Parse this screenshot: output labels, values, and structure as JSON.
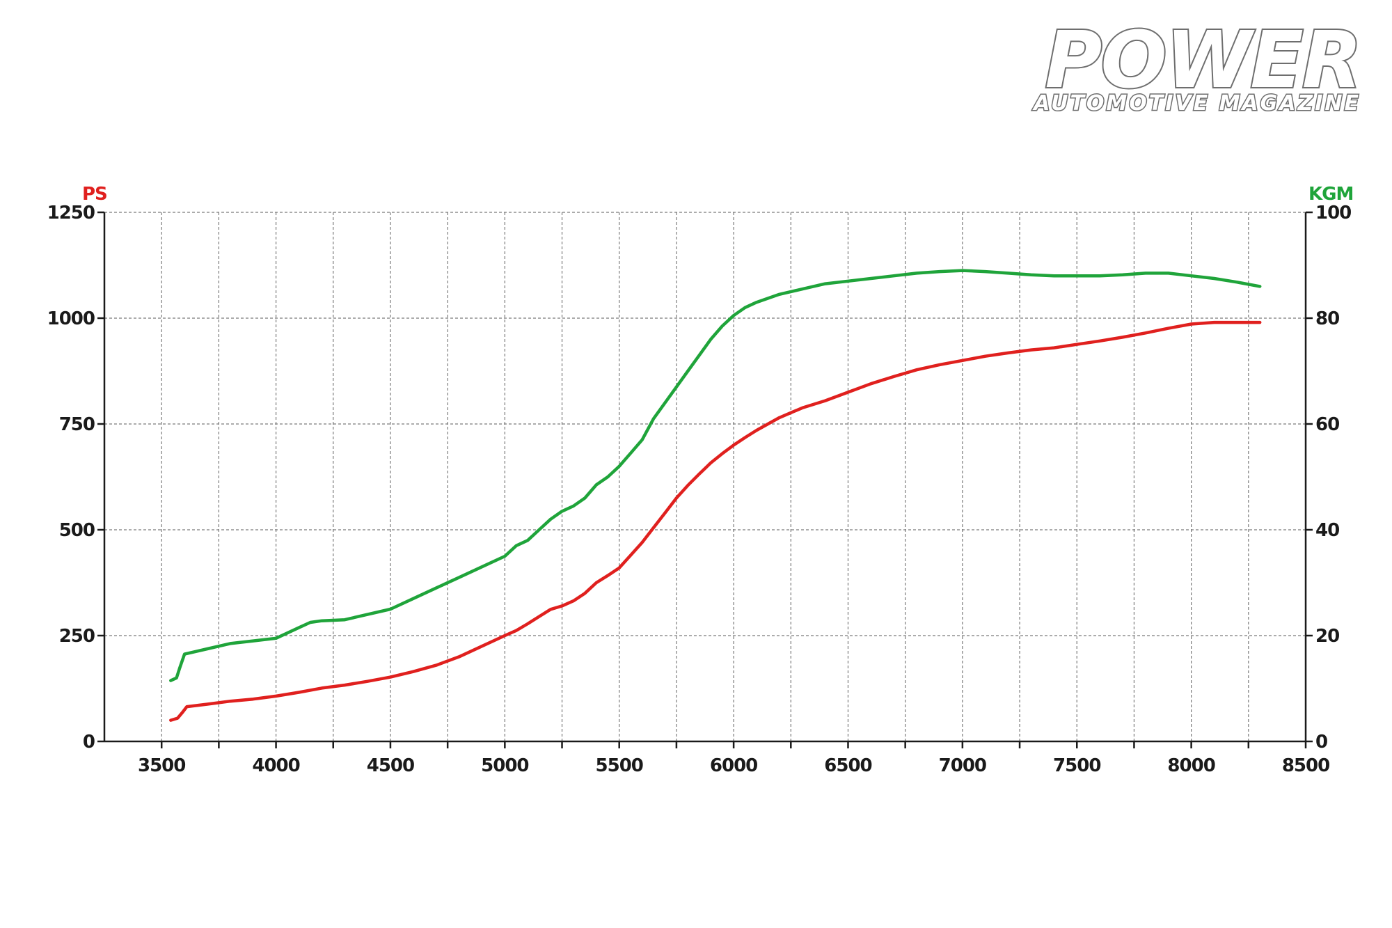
{
  "logo": {
    "name": "POWER",
    "tagline": "AUTOMOTIVE MAGAZINE"
  },
  "colors": {
    "power": "#e0201e",
    "torque": "#1fa43a",
    "axis": "#1a1a1a",
    "grid": "#7a7a7a"
  },
  "chart_data": {
    "type": "line",
    "title": "",
    "xlabel": "",
    "ylabel_left": "PS",
    "ylabel_right": "KGM",
    "xlim": [
      3250,
      8500
    ],
    "ylim_left": [
      0,
      1250
    ],
    "ylim_right": [
      0,
      100
    ],
    "x_ticks": [
      3500,
      4000,
      4500,
      5000,
      5500,
      6000,
      6500,
      7000,
      7500,
      8000,
      8500
    ],
    "y_ticks_left": [
      0,
      250,
      500,
      750,
      1000,
      1250
    ],
    "y_ticks_right": [
      0,
      20,
      40,
      60,
      80,
      100
    ],
    "grid": true,
    "series": [
      {
        "name": "PS",
        "axis": "left",
        "color": "#e0201e",
        "x": [
          3540,
          3570,
          3590,
          3610,
          3700,
          3800,
          3900,
          4000,
          4100,
          4200,
          4300,
          4400,
          4500,
          4600,
          4700,
          4800,
          4900,
          5000,
          5050,
          5100,
          5150,
          5200,
          5250,
          5300,
          5350,
          5400,
          5450,
          5500,
          5550,
          5600,
          5650,
          5700,
          5750,
          5800,
          5850,
          5900,
          5950,
          6000,
          6050,
          6100,
          6150,
          6200,
          6300,
          6400,
          6500,
          6600,
          6700,
          6800,
          6900,
          7000,
          7100,
          7200,
          7300,
          7400,
          7500,
          7600,
          7700,
          7800,
          7900,
          8000,
          8100,
          8200,
          8300
        ],
        "values": [
          50,
          55,
          68,
          82,
          88,
          95,
          100,
          107,
          116,
          126,
          133,
          142,
          152,
          165,
          180,
          200,
          225,
          250,
          262,
          278,
          295,
          312,
          320,
          332,
          350,
          375,
          392,
          410,
          440,
          470,
          505,
          540,
          575,
          605,
          632,
          658,
          680,
          700,
          718,
          735,
          750,
          765,
          788,
          805,
          825,
          845,
          862,
          878,
          890,
          900,
          910,
          918,
          925,
          930,
          938,
          946,
          955,
          965,
          976,
          986,
          990,
          990,
          990
        ]
      },
      {
        "name": "KGM",
        "axis": "right",
        "color": "#1fa43a",
        "x": [
          3540,
          3565,
          3580,
          3600,
          3650,
          3700,
          3750,
          3800,
          3900,
          4000,
          4050,
          4100,
          4150,
          4200,
          4300,
          4400,
          4500,
          4600,
          4700,
          4800,
          4900,
          5000,
          5050,
          5100,
          5150,
          5200,
          5250,
          5300,
          5350,
          5400,
          5450,
          5500,
          5550,
          5600,
          5650,
          5700,
          5750,
          5800,
          5850,
          5900,
          5950,
          6000,
          6050,
          6100,
          6200,
          6300,
          6400,
          6500,
          6600,
          6700,
          6800,
          6900,
          7000,
          7100,
          7200,
          7300,
          7400,
          7500,
          7600,
          7700,
          7800,
          7900,
          8000,
          8100,
          8200,
          8300
        ],
        "values": [
          11.5,
          12,
          14,
          16.5,
          17,
          17.5,
          18,
          18.5,
          19,
          19.5,
          20.5,
          21.5,
          22.5,
          22.8,
          23,
          24,
          25,
          27,
          29,
          31,
          33,
          35,
          37,
          38,
          40,
          42,
          43.5,
          44.5,
          46,
          48.5,
          50,
          52,
          54.5,
          57,
          61,
          64,
          67,
          70,
          73,
          76,
          78.5,
          80.5,
          82,
          83,
          84.5,
          85.5,
          86.5,
          87,
          87.5,
          88,
          88.5,
          88.8,
          89,
          88.8,
          88.5,
          88.2,
          88,
          88,
          88,
          88.2,
          88.5,
          88.5,
          88,
          87.5,
          86.8,
          86
        ]
      }
    ]
  }
}
